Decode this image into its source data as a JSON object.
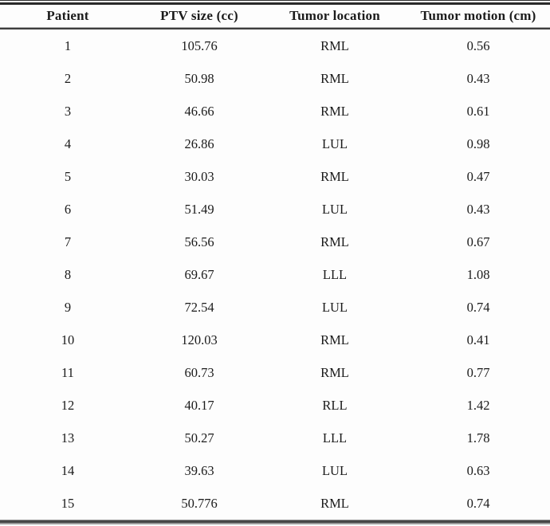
{
  "table": {
    "columns": [
      "Patient",
      "PTV size (cc)",
      "Tumor location",
      "Tumor motion (cm)"
    ],
    "rows": [
      {
        "patient": "1",
        "ptv_size_cc": "105.76",
        "tumor_location": "RML",
        "tumor_motion_cm": "0.56"
      },
      {
        "patient": "2",
        "ptv_size_cc": "50.98",
        "tumor_location": "RML",
        "tumor_motion_cm": "0.43"
      },
      {
        "patient": "3",
        "ptv_size_cc": "46.66",
        "tumor_location": "RML",
        "tumor_motion_cm": "0.61"
      },
      {
        "patient": "4",
        "ptv_size_cc": "26.86",
        "tumor_location": "LUL",
        "tumor_motion_cm": "0.98"
      },
      {
        "patient": "5",
        "ptv_size_cc": "30.03",
        "tumor_location": "RML",
        "tumor_motion_cm": "0.47"
      },
      {
        "patient": "6",
        "ptv_size_cc": "51.49",
        "tumor_location": "LUL",
        "tumor_motion_cm": "0.43"
      },
      {
        "patient": "7",
        "ptv_size_cc": "56.56",
        "tumor_location": "RML",
        "tumor_motion_cm": "0.67"
      },
      {
        "patient": "8",
        "ptv_size_cc": "69.67",
        "tumor_location": "LLL",
        "tumor_motion_cm": "1.08"
      },
      {
        "patient": "9",
        "ptv_size_cc": "72.54",
        "tumor_location": "LUL",
        "tumor_motion_cm": "0.74"
      },
      {
        "patient": "10",
        "ptv_size_cc": "120.03",
        "tumor_location": "RML",
        "tumor_motion_cm": "0.41"
      },
      {
        "patient": "11",
        "ptv_size_cc": "60.73",
        "tumor_location": "RML",
        "tumor_motion_cm": "0.77"
      },
      {
        "patient": "12",
        "ptv_size_cc": "40.17",
        "tumor_location": "RLL",
        "tumor_motion_cm": "1.42"
      },
      {
        "patient": "13",
        "ptv_size_cc": "50.27",
        "tumor_location": "LLL",
        "tumor_motion_cm": "1.78"
      },
      {
        "patient": "14",
        "ptv_size_cc": "39.63",
        "tumor_location": "LUL",
        "tumor_motion_cm": "0.63"
      },
      {
        "patient": "15",
        "ptv_size_cc": "50.776",
        "tumor_location": "RML",
        "tumor_motion_cm": "0.74"
      }
    ]
  },
  "chart_data": {
    "type": "table",
    "title": "",
    "columns": [
      "Patient",
      "PTV size (cc)",
      "Tumor location",
      "Tumor motion (cm)"
    ],
    "rows": [
      [
        1,
        105.76,
        "RML",
        0.56
      ],
      [
        2,
        50.98,
        "RML",
        0.43
      ],
      [
        3,
        46.66,
        "RML",
        0.61
      ],
      [
        4,
        26.86,
        "LUL",
        0.98
      ],
      [
        5,
        30.03,
        "RML",
        0.47
      ],
      [
        6,
        51.49,
        "LUL",
        0.43
      ],
      [
        7,
        56.56,
        "RML",
        0.67
      ],
      [
        8,
        69.67,
        "LLL",
        1.08
      ],
      [
        9,
        72.54,
        "LUL",
        0.74
      ],
      [
        10,
        120.03,
        "RML",
        0.41
      ],
      [
        11,
        60.73,
        "RML",
        0.77
      ],
      [
        12,
        40.17,
        "RLL",
        1.42
      ],
      [
        13,
        50.27,
        "LLL",
        1.78
      ],
      [
        14,
        39.63,
        "LUL",
        0.63
      ],
      [
        15,
        50.776,
        "RML",
        0.74
      ]
    ]
  },
  "colors": {
    "background": "#fdfdfd",
    "text": "#1b1b1b",
    "rule_dark": "#2a2a2a",
    "rule_gray": "#9b9b9b"
  }
}
